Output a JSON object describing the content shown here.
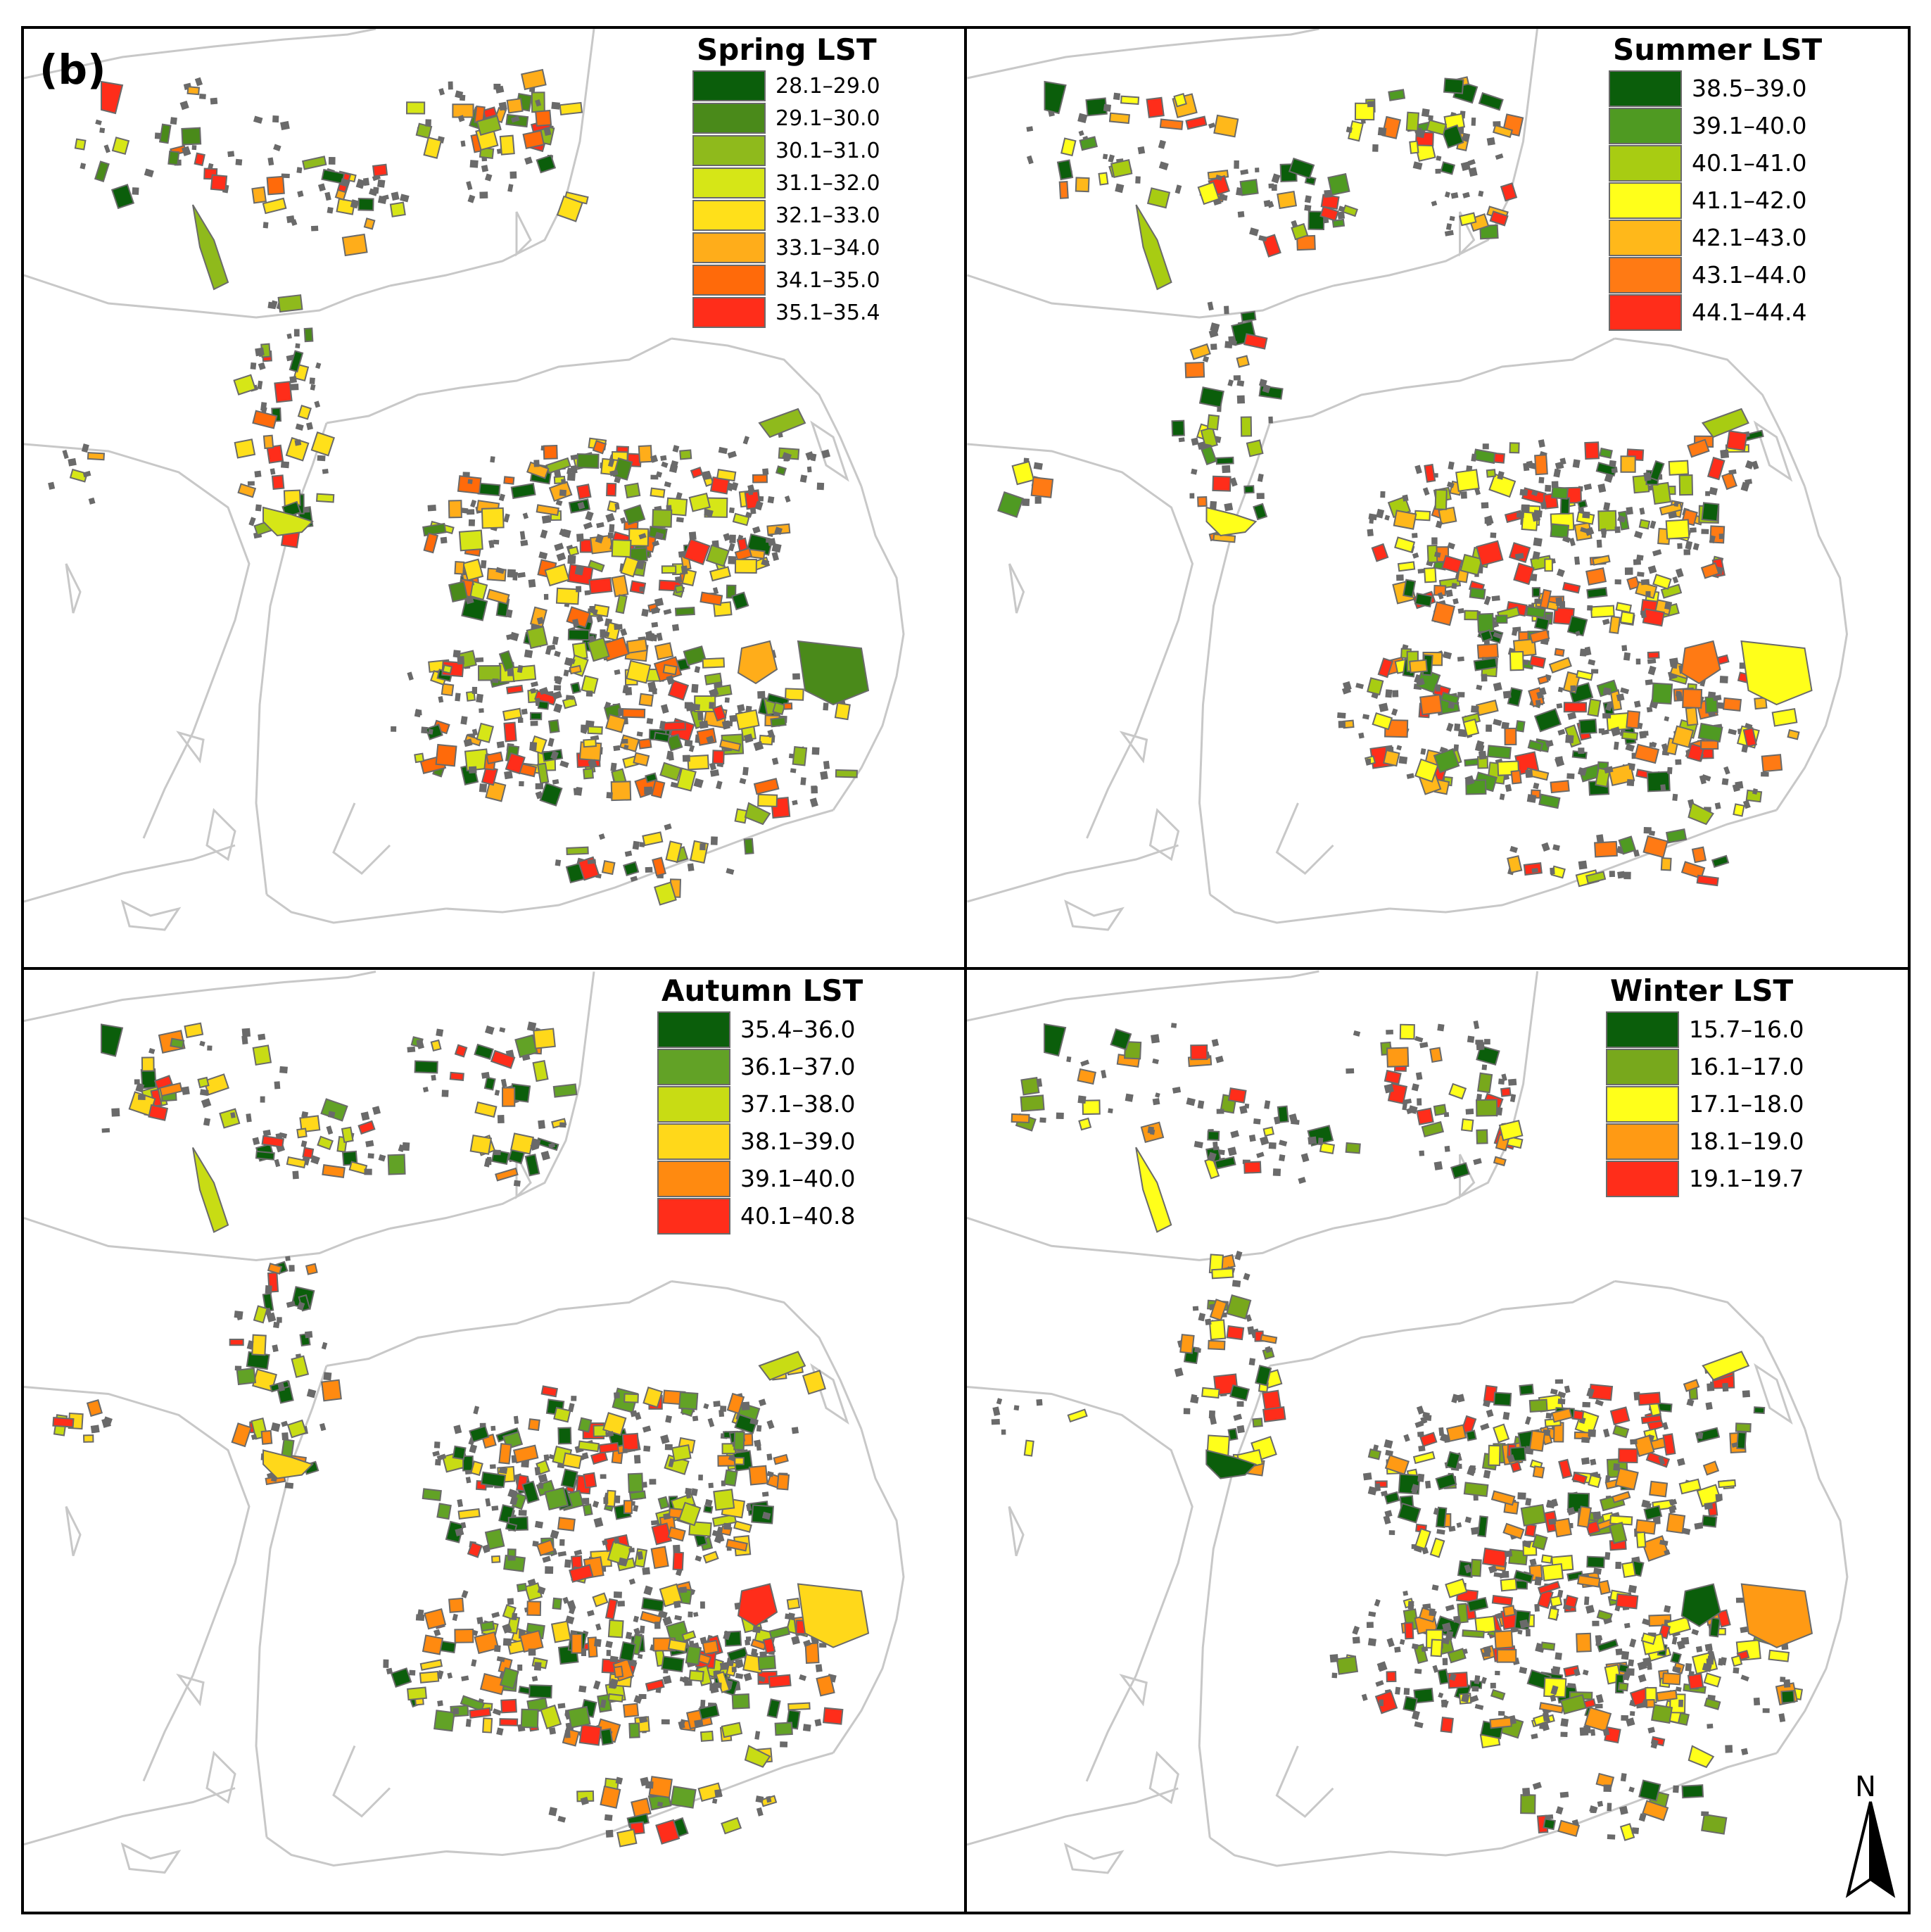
{
  "figure": {
    "label": "(b)",
    "north_label": "N"
  },
  "outline_color": "#c8c8c8",
  "parcel_edge_color": "#6a6a6a",
  "panels": [
    {
      "id": "spring",
      "title": "Spring LST",
      "classes": [
        {
          "range": "28.1–29.0",
          "color": "#0b5e0b"
        },
        {
          "range": "29.1–30.0",
          "color": "#4a8a1a"
        },
        {
          "range": "30.1–31.0",
          "color": "#8fba1c"
        },
        {
          "range": "31.1–32.0",
          "color": "#d6e617"
        },
        {
          "range": "32.1–33.0",
          "color": "#ffe01a"
        },
        {
          "range": "33.1–34.0",
          "color": "#ffad1a"
        },
        {
          "range": "34.1–35.0",
          "color": "#ff6a0a"
        },
        {
          "range": "35.1–35.4",
          "color": "#ff2d1a"
        }
      ]
    },
    {
      "id": "summer",
      "title": "Summer LST",
      "classes": [
        {
          "range": "38.5–39.0",
          "color": "#0b5e0b"
        },
        {
          "range": "39.1–40.0",
          "color": "#4f9a22"
        },
        {
          "range": "40.1–41.0",
          "color": "#a8cc12"
        },
        {
          "range": "41.1–42.0",
          "color": "#ffff1a"
        },
        {
          "range": "42.1–43.0",
          "color": "#ffb81a"
        },
        {
          "range": "43.1–44.0",
          "color": "#ff7a14"
        },
        {
          "range": "44.1–44.4",
          "color": "#ff2d1a"
        }
      ]
    },
    {
      "id": "autumn",
      "title": "Autumn LST",
      "classes": [
        {
          "range": "35.4–36.0",
          "color": "#0b5e0b"
        },
        {
          "range": "36.1–37.0",
          "color": "#62a226"
        },
        {
          "range": "37.1–38.0",
          "color": "#c8dc14"
        },
        {
          "range": "38.1–39.0",
          "color": "#ffd81a"
        },
        {
          "range": "39.1–40.0",
          "color": "#ff8a10"
        },
        {
          "range": "40.1–40.8",
          "color": "#ff2d1a"
        }
      ]
    },
    {
      "id": "winter",
      "title": "Winter LST",
      "classes": [
        {
          "range": "15.7–16.0",
          "color": "#0b5e0b"
        },
        {
          "range": "16.1–17.0",
          "color": "#78a81c"
        },
        {
          "range": "17.1–18.0",
          "color": "#ffff1a"
        },
        {
          "range": "18.1–19.0",
          "color": "#ff9a14"
        },
        {
          "range": "19.1–19.7",
          "color": "#ff2d1a"
        }
      ]
    }
  ]
}
